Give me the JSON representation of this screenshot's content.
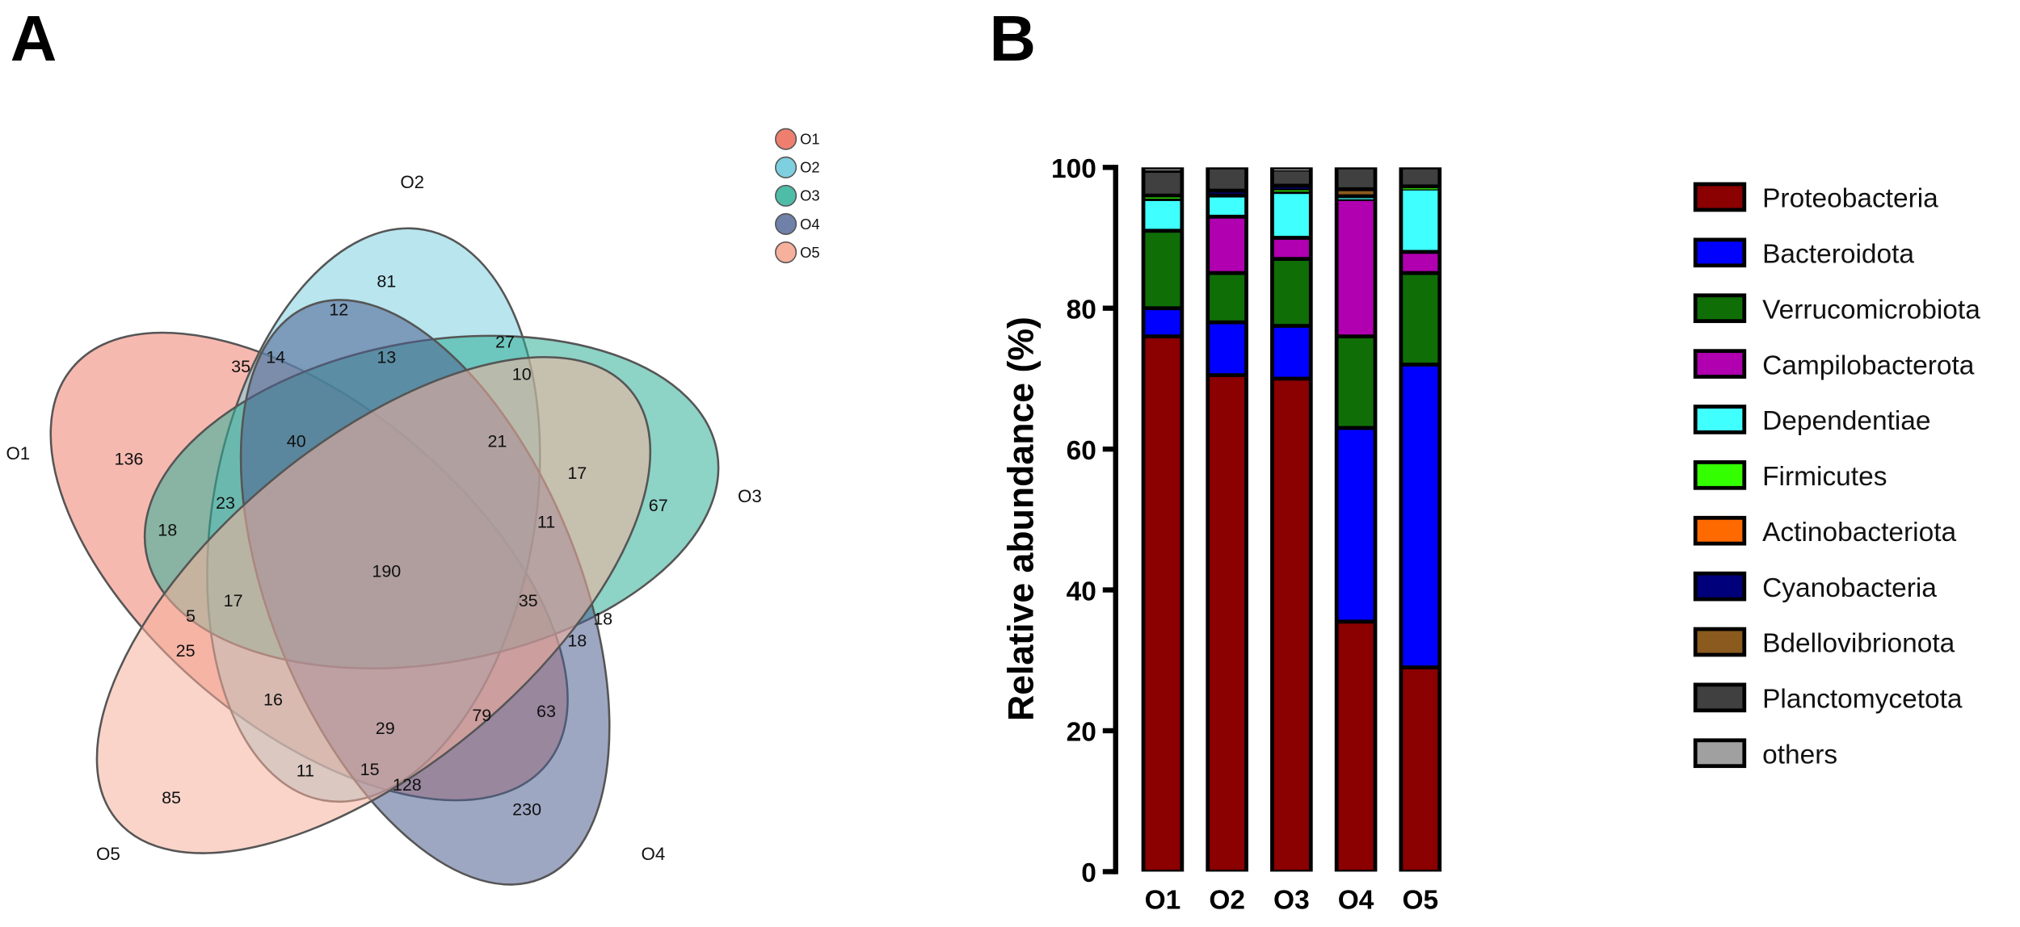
{
  "panels": {
    "a": "A",
    "b": "B"
  },
  "venn": {
    "sets": [
      {
        "name": "O1",
        "color": "#ee7f6f"
      },
      {
        "name": "O2",
        "color": "#7ecfe0"
      },
      {
        "name": "O3",
        "color": "#4ebda8"
      },
      {
        "name": "O4",
        "color": "#6f81a8"
      },
      {
        "name": "O5",
        "color": "#f6b09c"
      }
    ],
    "regions": [
      "81",
      "12",
      "35",
      "14",
      "13",
      "27",
      "10",
      "40",
      "21",
      "136",
      "17",
      "67",
      "18",
      "23",
      "11",
      "190",
      "5",
      "17",
      "35",
      "18",
      "25",
      "18",
      "16",
      "29",
      "79",
      "63",
      "11",
      "15",
      "128",
      "85",
      "230"
    ]
  },
  "chart_data": {
    "type": "bar",
    "stacked": true,
    "categories": [
      "O1",
      "O2",
      "O3",
      "O4",
      "O5"
    ],
    "ylabel": "Relative abundance (%)",
    "xlabel": "",
    "ylim": [
      0,
      100
    ],
    "yticks": [
      "0",
      "20",
      "40",
      "60",
      "80",
      "100"
    ],
    "legend_position": "right",
    "series": [
      {
        "name": "Proteobacteria",
        "color": "#8b0000",
        "values": [
          76,
          70.5,
          70,
          35.5,
          29
        ]
      },
      {
        "name": "Bacteroidota",
        "color": "#0000ff",
        "values": [
          4,
          7.5,
          7.5,
          27.5,
          43
        ]
      },
      {
        "name": "Verrucomicrobiota",
        "color": "#0f6e06",
        "values": [
          11,
          7,
          9.5,
          13,
          13
        ]
      },
      {
        "name": "Campilobacterota",
        "color": "#b000b0",
        "values": [
          0,
          8,
          3,
          19.5,
          3
        ]
      },
      {
        "name": "Dependentiae",
        "color": "#3fffff",
        "values": [
          4.5,
          3,
          6.5,
          0.4,
          9
        ]
      },
      {
        "name": "Firmicutes",
        "color": "#33ff00",
        "values": [
          0.5,
          0,
          0.5,
          0,
          0.3
        ]
      },
      {
        "name": "Actinobacteriota",
        "color": "#ff6a00",
        "values": [
          0,
          0,
          0,
          0,
          0
        ]
      },
      {
        "name": "Cyanobacteria",
        "color": "#00007a",
        "values": [
          0,
          0.7,
          0.4,
          0,
          0
        ]
      },
      {
        "name": "Bdellovibrionota",
        "color": "#8b5a1f",
        "values": [
          0,
          0,
          0,
          1,
          0
        ]
      },
      {
        "name": "Planctomycetota",
        "color": "#404040",
        "values": [
          3.5,
          3.3,
          2.3,
          3.1,
          2.7
        ]
      },
      {
        "name": "others",
        "color": "#a0a0a0",
        "values": [
          0.5,
          0,
          0.3,
          0,
          0
        ]
      }
    ]
  }
}
